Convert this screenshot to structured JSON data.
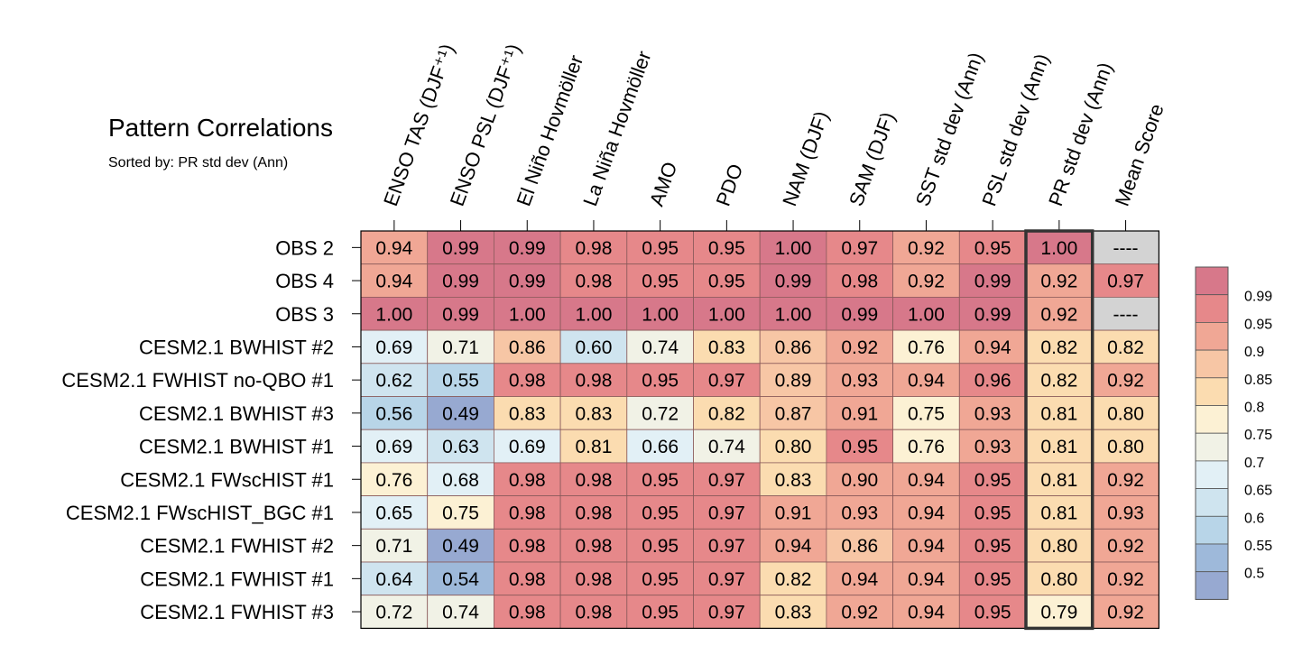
{
  "chart_data": {
    "type": "heatmap",
    "title": "Pattern Correlations",
    "subtitle": "Sorted by: PR std dev (Ann)",
    "columns": [
      "ENSO TAS (DJF⁺¹)",
      "ENSO PSL (DJF⁺¹)",
      "El Niño Hovmöller",
      "La Niña Hovmöller",
      "AMO",
      "PDO",
      "NAM (DJF)",
      "SAM (DJF)",
      "SST std dev (Ann)",
      "PSL std dev (Ann)",
      "PR std dev (Ann)",
      "Mean Score"
    ],
    "highlighted_column": "PR std dev (Ann)",
    "rows": [
      {
        "name": "OBS 2",
        "values": [
          "0.94",
          "0.99",
          "0.99",
          "0.98",
          "0.95",
          "0.95",
          "1.00",
          "0.97",
          "0.92",
          "0.95",
          "1.00",
          "----"
        ]
      },
      {
        "name": "OBS 4",
        "values": [
          "0.94",
          "0.99",
          "0.99",
          "0.98",
          "0.95",
          "0.95",
          "0.99",
          "0.98",
          "0.92",
          "0.99",
          "0.92",
          "0.97"
        ]
      },
      {
        "name": "OBS 3",
        "values": [
          "1.00",
          "0.99",
          "1.00",
          "1.00",
          "1.00",
          "1.00",
          "1.00",
          "0.99",
          "1.00",
          "0.99",
          "0.92",
          "----"
        ]
      },
      {
        "name": "CESM2.1 BWHIST #2",
        "values": [
          "0.69",
          "0.71",
          "0.86",
          "0.60",
          "0.74",
          "0.83",
          "0.86",
          "0.92",
          "0.76",
          "0.94",
          "0.82",
          "0.82"
        ]
      },
      {
        "name": "CESM2.1 FWHIST no-QBO #1",
        "values": [
          "0.62",
          "0.55",
          "0.98",
          "0.98",
          "0.95",
          "0.97",
          "0.89",
          "0.93",
          "0.94",
          "0.96",
          "0.82",
          "0.92"
        ]
      },
      {
        "name": "CESM2.1 BWHIST #3",
        "values": [
          "0.56",
          "0.49",
          "0.83",
          "0.83",
          "0.72",
          "0.82",
          "0.87",
          "0.91",
          "0.75",
          "0.93",
          "0.81",
          "0.80"
        ]
      },
      {
        "name": "CESM2.1 BWHIST #1",
        "values": [
          "0.69",
          "0.63",
          "0.69",
          "0.81",
          "0.66",
          "0.74",
          "0.80",
          "0.95",
          "0.76",
          "0.93",
          "0.81",
          "0.80"
        ]
      },
      {
        "name": "CESM2.1 FWscHIST #1",
        "values": [
          "0.76",
          "0.68",
          "0.98",
          "0.98",
          "0.95",
          "0.97",
          "0.83",
          "0.90",
          "0.94",
          "0.95",
          "0.81",
          "0.92"
        ]
      },
      {
        "name": "CESM2.1 FWscHIST_BGC #1",
        "values": [
          "0.65",
          "0.75",
          "0.98",
          "0.98",
          "0.95",
          "0.97",
          "0.91",
          "0.93",
          "0.94",
          "0.95",
          "0.81",
          "0.93"
        ]
      },
      {
        "name": "CESM2.1 FWHIST #2",
        "values": [
          "0.71",
          "0.49",
          "0.98",
          "0.98",
          "0.95",
          "0.97",
          "0.94",
          "0.86",
          "0.94",
          "0.95",
          "0.80",
          "0.92"
        ]
      },
      {
        "name": "CESM2.1 FWHIST #1",
        "values": [
          "0.64",
          "0.54",
          "0.98",
          "0.98",
          "0.95",
          "0.97",
          "0.82",
          "0.94",
          "0.94",
          "0.95",
          "0.80",
          "0.92"
        ]
      },
      {
        "name": "CESM2.1 FWHIST #3",
        "values": [
          "0.72",
          "0.74",
          "0.98",
          "0.98",
          "0.95",
          "0.97",
          "0.83",
          "0.92",
          "0.94",
          "0.95",
          "0.79",
          "0.92"
        ]
      }
    ],
    "legend": {
      "labels": [
        "0.99",
        "0.95",
        "0.9",
        "0.85",
        "0.8",
        "0.75",
        "0.7",
        "0.65",
        "0.6",
        "0.55",
        "0.5"
      ],
      "thresholds": [
        0.99,
        0.95,
        0.9,
        0.85,
        0.8,
        0.75,
        0.7,
        0.65,
        0.6,
        0.55,
        0.5
      ],
      "colors": [
        "#d7788a",
        "#e6888a",
        "#f0a795",
        "#f7c6a5",
        "#fbdcb0",
        "#fcf1d4",
        "#f1f2e6",
        "#e2f0f6",
        "#cfe4ef",
        "#b8d5e8",
        "#9eb9da",
        "#97a9d1"
      ],
      "missing_color": "#d3d3d3"
    }
  }
}
